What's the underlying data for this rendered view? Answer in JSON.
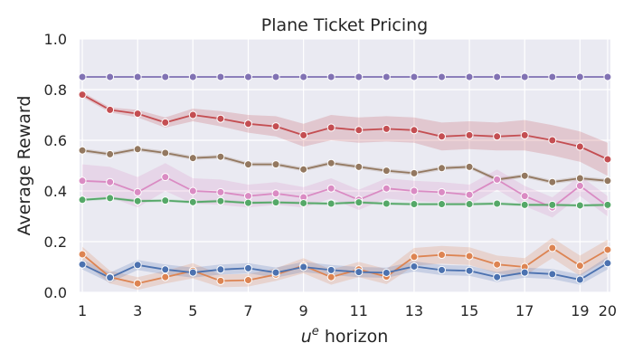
{
  "chart_data": {
    "type": "line",
    "title": "Plane Ticket Pricing",
    "xlabel_main": "u",
    "xlabel_sup": "e",
    "xlabel_rest": " horizon",
    "ylabel": "Average Reward",
    "x": [
      1,
      2,
      3,
      4,
      5,
      6,
      7,
      8,
      9,
      10,
      11,
      12,
      13,
      14,
      15,
      16,
      17,
      18,
      19,
      20
    ],
    "xticks": [
      1,
      3,
      5,
      7,
      9,
      11,
      13,
      15,
      17,
      19,
      20
    ],
    "yticks": [
      "0.0",
      "0.2",
      "0.4",
      "0.6",
      "0.8",
      "1.0"
    ],
    "ytick_values": [
      0.0,
      0.2,
      0.4,
      0.6,
      0.8,
      1.0
    ],
    "xlim": [
      0.9,
      20.1
    ],
    "ylim": [
      0.0,
      1.0
    ],
    "grid": true,
    "background": "#eaeaf2",
    "series": [
      {
        "color": "#8172b3",
        "values": [
          0.85,
          0.85,
          0.85,
          0.85,
          0.85,
          0.85,
          0.85,
          0.85,
          0.85,
          0.85,
          0.85,
          0.85,
          0.85,
          0.85,
          0.85,
          0.85,
          0.85,
          0.85,
          0.85,
          0.85
        ],
        "band": [
          0.003,
          0.003,
          0.003,
          0.003,
          0.003,
          0.003,
          0.003,
          0.003,
          0.003,
          0.003,
          0.003,
          0.003,
          0.003,
          0.003,
          0.003,
          0.003,
          0.003,
          0.003,
          0.003,
          0.003
        ]
      },
      {
        "color": "#c44e52",
        "values": [
          0.78,
          0.72,
          0.705,
          0.67,
          0.7,
          0.685,
          0.665,
          0.655,
          0.62,
          0.65,
          0.64,
          0.645,
          0.64,
          0.615,
          0.62,
          0.615,
          0.62,
          0.6,
          0.575,
          0.525
        ],
        "band": [
          0.01,
          0.01,
          0.015,
          0.02,
          0.025,
          0.03,
          0.035,
          0.04,
          0.045,
          0.05,
          0.05,
          0.05,
          0.05,
          0.055,
          0.055,
          0.055,
          0.06,
          0.06,
          0.06,
          0.065
        ]
      },
      {
        "color": "#937860",
        "values": [
          0.56,
          0.545,
          0.565,
          0.55,
          0.53,
          0.535,
          0.505,
          0.505,
          0.485,
          0.51,
          0.495,
          0.48,
          0.47,
          0.49,
          0.495,
          0.445,
          0.46,
          0.435,
          0.45,
          0.44
        ],
        "band": [
          0.008,
          0.008,
          0.008,
          0.008,
          0.008,
          0.008,
          0.008,
          0.008,
          0.008,
          0.008,
          0.008,
          0.008,
          0.008,
          0.008,
          0.008,
          0.008,
          0.008,
          0.008,
          0.008,
          0.008
        ]
      },
      {
        "color": "#da8bc3",
        "values": [
          0.44,
          0.435,
          0.395,
          0.455,
          0.4,
          0.395,
          0.38,
          0.39,
          0.375,
          0.41,
          0.365,
          0.41,
          0.4,
          0.395,
          0.385,
          0.445,
          0.38,
          0.335,
          0.42,
          0.34
        ],
        "band": [
          0.065,
          0.06,
          0.06,
          0.055,
          0.05,
          0.05,
          0.045,
          0.045,
          0.04,
          0.04,
          0.04,
          0.04,
          0.04,
          0.04,
          0.04,
          0.04,
          0.04,
          0.04,
          0.04,
          0.04
        ]
      },
      {
        "color": "#55a868",
        "values": [
          0.365,
          0.372,
          0.36,
          0.362,
          0.356,
          0.36,
          0.353,
          0.355,
          0.352,
          0.35,
          0.355,
          0.35,
          0.348,
          0.348,
          0.348,
          0.35,
          0.345,
          0.345,
          0.343,
          0.345
        ],
        "band": [
          0.006,
          0.006,
          0.006,
          0.006,
          0.006,
          0.006,
          0.006,
          0.006,
          0.006,
          0.006,
          0.006,
          0.006,
          0.006,
          0.006,
          0.006,
          0.006,
          0.006,
          0.006,
          0.006,
          0.006
        ]
      },
      {
        "color": "#dd8452",
        "values": [
          0.15,
          0.06,
          0.035,
          0.06,
          0.085,
          0.045,
          0.048,
          0.07,
          0.105,
          0.06,
          0.09,
          0.062,
          0.14,
          0.148,
          0.143,
          0.11,
          0.1,
          0.175,
          0.105,
          0.168
        ],
        "band": [
          0.03,
          0.025,
          0.025,
          0.025,
          0.03,
          0.025,
          0.025,
          0.025,
          0.03,
          0.03,
          0.03,
          0.03,
          0.035,
          0.035,
          0.035,
          0.035,
          0.035,
          0.04,
          0.04,
          0.04
        ]
      },
      {
        "color": "#4c72b0",
        "values": [
          0.11,
          0.058,
          0.108,
          0.09,
          0.078,
          0.09,
          0.095,
          0.078,
          0.1,
          0.088,
          0.08,
          0.077,
          0.102,
          0.088,
          0.085,
          0.06,
          0.078,
          0.072,
          0.05,
          0.115
        ],
        "band": [
          0.02,
          0.02,
          0.02,
          0.02,
          0.02,
          0.02,
          0.02,
          0.02,
          0.02,
          0.02,
          0.02,
          0.02,
          0.02,
          0.02,
          0.02,
          0.02,
          0.02,
          0.02,
          0.02,
          0.025
        ]
      }
    ]
  }
}
